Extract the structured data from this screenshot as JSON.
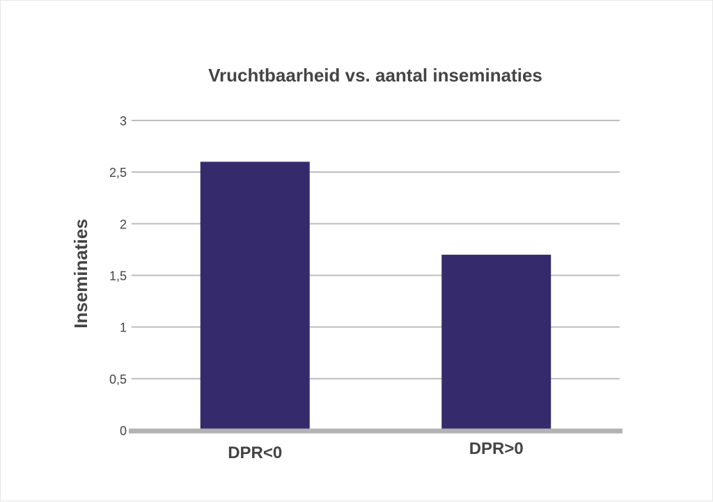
{
  "chart_data": {
    "type": "bar",
    "title": "Vruchtbaarheid vs. aantal inseminaties",
    "xlabel": "",
    "ylabel": "Inseminaties",
    "categories": [
      "DPR<0",
      "DPR>0"
    ],
    "values": [
      2.6,
      1.7
    ],
    "ylim": [
      0,
      3
    ],
    "yticks": [
      0,
      0.5,
      1,
      1.5,
      2,
      2.5,
      3
    ],
    "ytick_labels": [
      "0",
      "0,5",
      "1",
      "1,5",
      "2",
      "2,5",
      "3"
    ],
    "grid": true,
    "legend": "none",
    "colors": {
      "bar": "#352a6c",
      "grid": "#bdbdbd",
      "baseline": "#b3b3b3",
      "text": "#444444"
    }
  }
}
